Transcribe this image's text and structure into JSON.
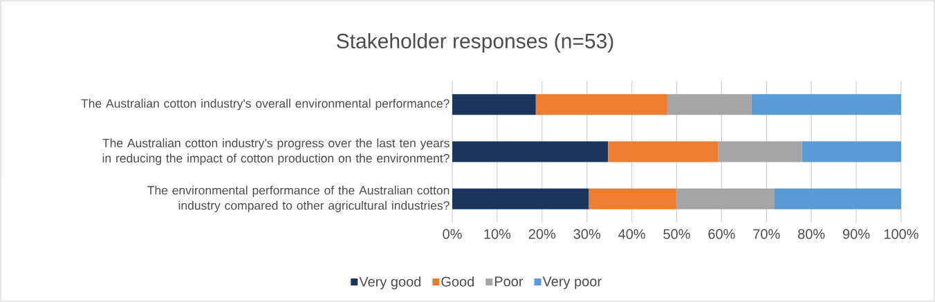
{
  "chart_data": {
    "type": "bar",
    "orientation": "horizontal",
    "stacked": true,
    "title": "Stakeholder responses (n=53)",
    "categories": [
      "The Australian cotton industry's overall environmental performance?",
      "The Australian cotton industry’s progress over the last ten years in reducing the impact of cotton production on the environment?",
      "The environmental performance of the Australian cotton industry compared to other agricultural industries?"
    ],
    "series": [
      {
        "name": "Very good",
        "color": "#1a365f",
        "values": [
          18.6,
          34.7,
          30.4
        ]
      },
      {
        "name": "Good",
        "color": "#ed7d31",
        "values": [
          29.3,
          24.5,
          19.5
        ]
      },
      {
        "name": "Poor",
        "color": "#a5a5a5",
        "values": [
          18.8,
          18.7,
          21.9
        ]
      },
      {
        "name": "Very poor",
        "color": "#5b9bd5",
        "values": [
          33.3,
          22.1,
          28.2
        ]
      }
    ],
    "xlim": [
      0,
      100
    ],
    "xticks": [
      {
        "value": 0,
        "label": "0%"
      },
      {
        "value": 10,
        "label": "10%"
      },
      {
        "value": 20,
        "label": "20%"
      },
      {
        "value": 30,
        "label": "30%"
      },
      {
        "value": 40,
        "label": "40%"
      },
      {
        "value": 50,
        "label": "50%"
      },
      {
        "value": 60,
        "label": "60%"
      },
      {
        "value": 70,
        "label": "70%"
      },
      {
        "value": 80,
        "label": "80%"
      },
      {
        "value": 90,
        "label": "90%"
      },
      {
        "value": 100,
        "label": "100%"
      }
    ],
    "grid": "x",
    "legend": "bottom"
  }
}
